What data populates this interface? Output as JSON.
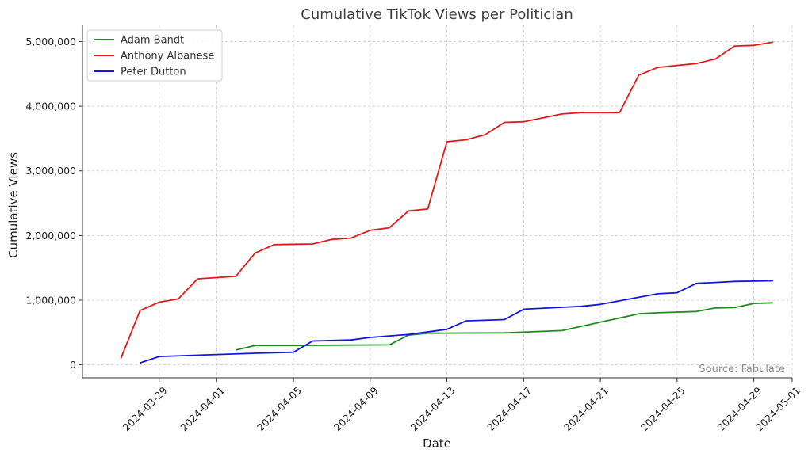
{
  "chart_data": {
    "type": "line",
    "title": "Cumulative TikTok Views per Politician",
    "xlabel": "Date",
    "ylabel": "Cumulative Views",
    "source": "Source: Fabulate",
    "xlim": [
      "2024-03-25",
      "2024-05-01"
    ],
    "ylim": [
      -200000,
      5250000
    ],
    "x_ticks": [
      "2024-03-29",
      "2024-04-01",
      "2024-04-05",
      "2024-04-09",
      "2024-04-13",
      "2024-04-17",
      "2024-04-21",
      "2024-04-25",
      "2024-04-29",
      "2024-05-01"
    ],
    "y_ticks": [
      0,
      1000000,
      2000000,
      3000000,
      4000000,
      5000000
    ],
    "y_tick_labels": [
      "0",
      "1,000,000",
      "2,000,000",
      "3,000,000",
      "4,000,000",
      "5,000,000"
    ],
    "grid": true,
    "legend_position": "top-left",
    "series": [
      {
        "name": "Adam Bandt",
        "color": "#228b22",
        "points": [
          [
            "2024-04-02",
            230000
          ],
          [
            "2024-04-03",
            300000
          ],
          [
            "2024-04-05",
            300000
          ],
          [
            "2024-04-07",
            305000
          ],
          [
            "2024-04-10",
            310000
          ],
          [
            "2024-04-11",
            460000
          ],
          [
            "2024-04-12",
            490000
          ],
          [
            "2024-04-16",
            495000
          ],
          [
            "2024-04-19",
            530000
          ],
          [
            "2024-04-21",
            660000
          ],
          [
            "2024-04-23",
            790000
          ],
          [
            "2024-04-24",
            805000
          ],
          [
            "2024-04-26",
            825000
          ],
          [
            "2024-04-27",
            880000
          ],
          [
            "2024-04-28",
            885000
          ],
          [
            "2024-04-29",
            950000
          ],
          [
            "2024-04-30",
            960000
          ]
        ]
      },
      {
        "name": "Anthony Albanese",
        "color": "#e31a1c",
        "points": [
          [
            "2024-03-27",
            100000
          ],
          [
            "2024-03-28",
            840000
          ],
          [
            "2024-03-29",
            970000
          ],
          [
            "2024-03-30",
            1020000
          ],
          [
            "2024-03-31",
            1330000
          ],
          [
            "2024-04-02",
            1370000
          ],
          [
            "2024-04-03",
            1730000
          ],
          [
            "2024-04-04",
            1860000
          ],
          [
            "2024-04-06",
            1870000
          ],
          [
            "2024-04-07",
            1940000
          ],
          [
            "2024-04-08",
            1960000
          ],
          [
            "2024-04-09",
            2080000
          ],
          [
            "2024-04-10",
            2120000
          ],
          [
            "2024-04-11",
            2380000
          ],
          [
            "2024-04-12",
            2410000
          ],
          [
            "2024-04-13",
            3450000
          ],
          [
            "2024-04-14",
            3480000
          ],
          [
            "2024-04-15",
            3560000
          ],
          [
            "2024-04-16",
            3750000
          ],
          [
            "2024-04-17",
            3760000
          ],
          [
            "2024-04-19",
            3880000
          ],
          [
            "2024-04-20",
            3900000
          ],
          [
            "2024-04-22",
            3900000
          ],
          [
            "2024-04-23",
            4480000
          ],
          [
            "2024-04-24",
            4600000
          ],
          [
            "2024-04-26",
            4660000
          ],
          [
            "2024-04-27",
            4730000
          ],
          [
            "2024-04-28",
            4930000
          ],
          [
            "2024-04-29",
            4940000
          ],
          [
            "2024-04-30",
            4990000
          ]
        ]
      },
      {
        "name": "Peter Dutton",
        "color": "#1515e0",
        "points": [
          [
            "2024-03-28",
            30000
          ],
          [
            "2024-03-29",
            130000
          ],
          [
            "2024-04-01",
            160000
          ],
          [
            "2024-04-03",
            180000
          ],
          [
            "2024-04-05",
            195000
          ],
          [
            "2024-04-06",
            370000
          ],
          [
            "2024-04-08",
            385000
          ],
          [
            "2024-04-09",
            425000
          ],
          [
            "2024-04-11",
            470000
          ],
          [
            "2024-04-13",
            550000
          ],
          [
            "2024-04-14",
            680000
          ],
          [
            "2024-04-16",
            700000
          ],
          [
            "2024-04-17",
            860000
          ],
          [
            "2024-04-19",
            890000
          ],
          [
            "2024-04-20",
            905000
          ],
          [
            "2024-04-21",
            935000
          ],
          [
            "2024-04-24",
            1100000
          ],
          [
            "2024-04-25",
            1115000
          ],
          [
            "2024-04-26",
            1260000
          ],
          [
            "2024-04-27",
            1275000
          ],
          [
            "2024-04-28",
            1290000
          ],
          [
            "2024-04-30",
            1300000
          ]
        ]
      }
    ]
  }
}
